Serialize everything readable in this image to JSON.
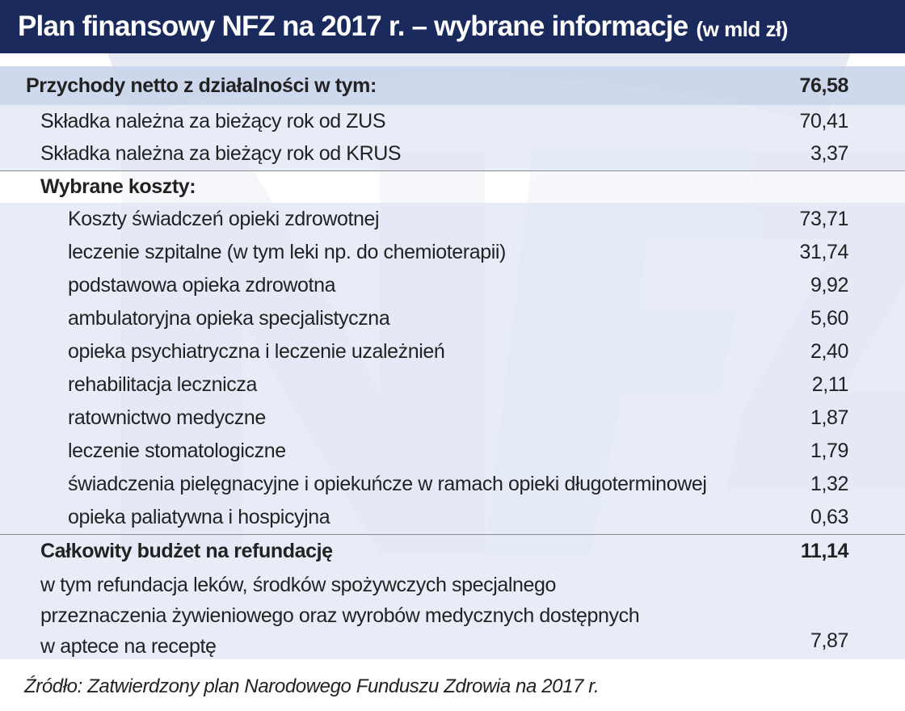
{
  "header": {
    "title": "Plan finansowy NFZ na 2017 r. – wybrane informacje",
    "unit": "(w mld zł)"
  },
  "rows": [
    {
      "label": "Przychody netto z działalności w tym:",
      "value": "76,58"
    },
    {
      "label": "Składka należna za bieżący rok od ZUS",
      "value": "70,41"
    },
    {
      "label": "Składka należna za bieżący rok od KRUS",
      "value": "3,37"
    },
    {
      "label": "Wybrane koszty:",
      "value": ""
    },
    {
      "label": "Koszty świadczeń opieki zdrowotnej",
      "value": "73,71"
    },
    {
      "label": "leczenie szpitalne (w tym leki np. do chemioterapii)",
      "value": "31,74"
    },
    {
      "label": "podstawowa opieka zdrowotna",
      "value": "9,92"
    },
    {
      "label": "ambulatoryjna opieka specjalistyczna",
      "value": "5,60"
    },
    {
      "label": "opieka psychiatryczna i leczenie uzależnień",
      "value": "2,40"
    },
    {
      "label": "rehabilitacja lecznicza",
      "value": "2,11"
    },
    {
      "label": "ratownictwo medyczne",
      "value": "1,87"
    },
    {
      "label": "leczenie stomatologiczne",
      "value": "1,79"
    },
    {
      "label": "świadczenia pielęgnacyjne i opiekuńcze w ramach opieki długoterminowej",
      "value": "1,32"
    },
    {
      "label": "opieka paliatywna i hospicyjna",
      "value": "0,63"
    },
    {
      "label": "Całkowity budżet na refundację",
      "value": "11,14"
    }
  ],
  "refund_note": {
    "lines": [
      "w tym refundacja leków, środków spożywczych specjalnego",
      "przeznaczenia żywieniowego oraz wyrobów medycznych dostępnych",
      "w aptece na receptę"
    ],
    "value": "7,87"
  },
  "source": "Źródło: Zatwierdzony plan Narodowego Funduszu Zdrowia na 2017 r."
}
